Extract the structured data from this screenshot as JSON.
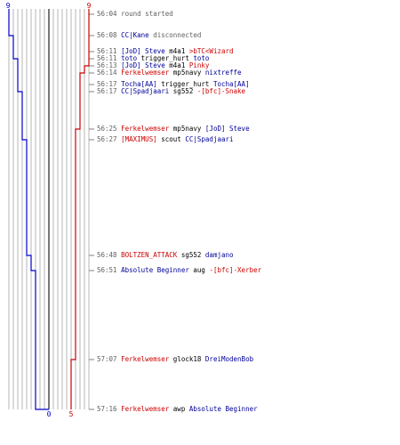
{
  "colors": {
    "team_blue": "#0000cc",
    "team_red": "#cc0000",
    "text_blue": "#000099",
    "text_red": "#cc0000",
    "muted": "#606060",
    "grid": "#b4b4b4"
  },
  "scoreboard": {
    "blue_team": {
      "start_label": "9",
      "end_label": "0",
      "counts": [
        9,
        8,
        8,
        7,
        7,
        7,
        7,
        6,
        6,
        5,
        4,
        3,
        3,
        2,
        1,
        0
      ],
      "label_color": "#0000cc"
    },
    "red_team": {
      "start_label": "9",
      "end_label": "5",
      "counts": [
        9,
        9,
        9,
        9,
        8,
        7,
        7,
        7,
        6,
        6,
        6,
        6,
        5,
        5,
        5,
        5
      ],
      "label_color": "#cc0000"
    },
    "max_players": 9
  },
  "events": [
    {
      "time": "56:04",
      "parts": [
        {
          "text": "round started",
          "style": "sys"
        }
      ]
    },
    {
      "time": "56:08",
      "parts": [
        {
          "text": "CC|Kane",
          "style": "blue"
        },
        {
          "text": " disconnected",
          "style": "sys"
        }
      ]
    },
    {
      "time": "56:11",
      "parts": [
        {
          "text": "[JoD] Steve",
          "style": "blue"
        },
        {
          "text": " m4a1 ",
          "style": "plain"
        },
        {
          "text": ">bTC<Wizard",
          "style": "red"
        }
      ]
    },
    {
      "time": "56:11",
      "parts": [
        {
          "text": "toto",
          "style": "blue"
        },
        {
          "text": " trigger_hurt ",
          "style": "plain"
        },
        {
          "text": "toto",
          "style": "blue"
        }
      ]
    },
    {
      "time": "56:13",
      "parts": [
        {
          "text": "[JoD] Steve",
          "style": "blue"
        },
        {
          "text": " m4a1 ",
          "style": "plain"
        },
        {
          "text": "Pinky",
          "style": "red"
        }
      ]
    },
    {
      "time": "56:14",
      "parts": [
        {
          "text": "Ferkelwemser",
          "style": "red"
        },
        {
          "text": " mp5navy ",
          "style": "plain"
        },
        {
          "text": "nixtreffe",
          "style": "blue"
        }
      ]
    },
    {
      "time": "56:17",
      "parts": [
        {
          "text": "Tocha[AA]",
          "style": "blue"
        },
        {
          "text": " trigger_hurt ",
          "style": "plain"
        },
        {
          "text": "Tocha[AA]",
          "style": "blue"
        }
      ]
    },
    {
      "time": "56:17",
      "parts": [
        {
          "text": "CC|Spadjaari",
          "style": "blue"
        },
        {
          "text": " sg552 ",
          "style": "plain"
        },
        {
          "text": "-[bfc]-Snake",
          "style": "red"
        }
      ]
    },
    {
      "time": "56:25",
      "parts": [
        {
          "text": "Ferkelwemser",
          "style": "red"
        },
        {
          "text": " mp5navy ",
          "style": "plain"
        },
        {
          "text": "[JoD] Steve",
          "style": "blue"
        }
      ]
    },
    {
      "time": "56:27",
      "parts": [
        {
          "text": "[MAXIMUS]",
          "style": "red"
        },
        {
          "text": " scout ",
          "style": "plain"
        },
        {
          "text": "CC|Spadjaari",
          "style": "blue"
        }
      ]
    },
    {
      "time": "56:48",
      "parts": [
        {
          "text": "BOLTZEN_ATTACK",
          "style": "red"
        },
        {
          "text": " sg552 ",
          "style": "plain"
        },
        {
          "text": "damjano",
          "style": "blue"
        }
      ]
    },
    {
      "time": "56:51",
      "parts": [
        {
          "text": "Absolute Beginner",
          "style": "blue"
        },
        {
          "text": " aug ",
          "style": "plain"
        },
        {
          "text": "-[bfc]-Xerber",
          "style": "red"
        }
      ]
    },
    {
      "time": "57:07",
      "parts": [
        {
          "text": "Ferkelwemser",
          "style": "red"
        },
        {
          "text": " glock18 ",
          "style": "plain"
        },
        {
          "text": "DreiModenBob",
          "style": "blue"
        }
      ]
    },
    {
      "time": "57:16",
      "parts": [
        {
          "text": "Ferkelwemser",
          "style": "red"
        },
        {
          "text": " awp ",
          "style": "plain"
        },
        {
          "text": "Absolute Beginner",
          "style": "blue"
        }
      ]
    }
  ]
}
